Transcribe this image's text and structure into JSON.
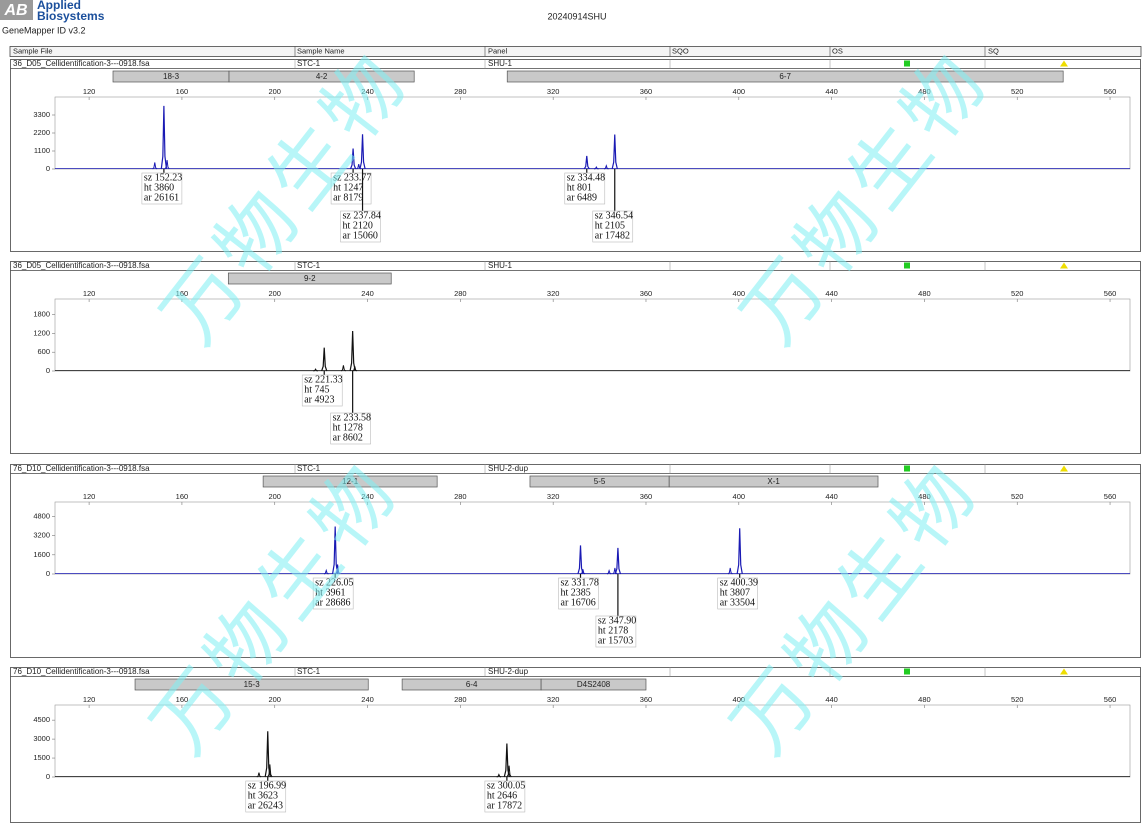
{
  "header": {
    "logo": "AB",
    "company_lines": [
      "Applied",
      "Biosystems"
    ],
    "software": "GeneMapper ID v3.2",
    "title": "20240914SHU"
  },
  "columns": [
    "Sample File",
    "Sample Name",
    "Panel",
    "SQO",
    "OS",
    "SQ"
  ],
  "watermark": "万物生物",
  "peak_label_keys": [
    "sz",
    "ht",
    "ar"
  ],
  "chart_data": [
    {
      "type": "electropherogram",
      "sample_file": "36_D05_Cellidentification-3---0918.fsa",
      "sample_name": "STC-1",
      "panel": "SHU-1",
      "color": "#1a1ab4",
      "bins": [
        {
          "name": "18-3",
          "start": 130.3,
          "end": 180.3
        },
        {
          "name": "4-2",
          "start": 180.3,
          "end": 260.1
        },
        {
          "name": "6-7",
          "start": 300.2,
          "end": 539.8
        }
      ],
      "xlim": [
        105.3,
        568.6
      ],
      "xticks": [
        120,
        160,
        200,
        240,
        280,
        320,
        360,
        400,
        440,
        480,
        520,
        560
      ],
      "ylim": [
        0,
        4400
      ],
      "yticks": [
        0,
        1100,
        2200,
        3300
      ],
      "peaks": [
        {
          "size": 152.23,
          "height": 3860,
          "area": 26161
        },
        {
          "size": 233.77,
          "height": 1247,
          "area": 8179
        },
        {
          "size": 237.84,
          "height": 2120,
          "area": 15060
        },
        {
          "size": 334.48,
          "height": 801,
          "area": 6489
        },
        {
          "size": 346.54,
          "height": 2105,
          "area": 17482
        }
      ],
      "minor_peaks": [
        {
          "size": 148.3,
          "height": 400
        },
        {
          "size": 153.6,
          "height": 550
        },
        {
          "size": 236.2,
          "height": 300
        },
        {
          "size": 338.6,
          "height": 120
        },
        {
          "size": 342.9,
          "height": 200
        }
      ]
    },
    {
      "type": "electropherogram",
      "sample_file": "36_D05_Cellidentification-3---0918.fsa",
      "sample_name": "STC-1",
      "panel": "SHU-1",
      "color": "#111111",
      "bins": [
        {
          "name": "9-2",
          "start": 180,
          "end": 250.2
        }
      ],
      "xlim": [
        105.3,
        568.6
      ],
      "xticks": [
        120,
        160,
        200,
        240,
        280,
        320,
        360,
        400,
        440,
        480,
        520,
        560
      ],
      "ylim": [
        0,
        2300
      ],
      "yticks": [
        0,
        600,
        1200,
        1800
      ],
      "peaks": [
        {
          "size": 221.33,
          "height": 745,
          "area": 4923
        },
        {
          "size": 233.58,
          "height": 1278,
          "area": 8602
        }
      ],
      "minor_peaks": [
        {
          "size": 217.6,
          "height": 60
        },
        {
          "size": 229.6,
          "height": 180
        },
        {
          "size": 234.5,
          "height": 150
        }
      ]
    },
    {
      "type": "electropherogram",
      "sample_file": "76_D10_Cellidentification-3---0918.fsa",
      "sample_name": "STC-1",
      "panel": "SHU-2-dup",
      "color": "#1a1ab4",
      "bins": [
        {
          "name": "12-1",
          "start": 195,
          "end": 270
        },
        {
          "name": "5-5",
          "start": 310,
          "end": 370
        },
        {
          "name": "X-1",
          "start": 370,
          "end": 460
        }
      ],
      "xlim": [
        105.3,
        568.6
      ],
      "xticks": [
        120,
        160,
        200,
        240,
        280,
        320,
        360,
        400,
        440,
        480,
        520,
        560
      ],
      "ylim": [
        0,
        6000
      ],
      "yticks": [
        0,
        1600,
        3200,
        4800
      ],
      "peaks": [
        {
          "size": 226.05,
          "height": 3961,
          "area": 28686
        },
        {
          "size": 331.78,
          "height": 2385,
          "area": 16706
        },
        {
          "size": {
            "value": 347.9,
            "label": "347.90"
          },
          "height": 2178,
          "area": 15703
        },
        {
          "size": 400.39,
          "height": 3807,
          "area": 33504
        }
      ],
      "minor_peaks": [
        {
          "size": 222.2,
          "height": 300
        },
        {
          "size": 227.1,
          "height": 800
        },
        {
          "size": 332.8,
          "height": 400
        },
        {
          "size": 344.1,
          "height": 280
        },
        {
          "size": 346.6,
          "height": 500
        },
        {
          "size": 396.3,
          "height": 500
        }
      ]
    },
    {
      "type": "electropherogram",
      "sample_file": "76_D10_Cellidentification-3---0918.fsa",
      "sample_name": "STC-1",
      "panel": "SHU-2-dup",
      "color": "#111111",
      "bins": [
        {
          "name": "15-3",
          "start": 139.8,
          "end": 240.3
        },
        {
          "name": "6-4",
          "start": 254.9,
          "end": 314.8
        },
        {
          "name": "D4S2408",
          "start": 314.8,
          "end": 360
        }
      ],
      "xlim": [
        105.3,
        568.6
      ],
      "xticks": [
        120,
        160,
        200,
        240,
        280,
        320,
        360,
        400,
        440,
        480,
        520,
        560
      ],
      "ylim": [
        0,
        5700
      ],
      "yticks": [
        0,
        1500,
        3000,
        4500
      ],
      "peaks": [
        {
          "size": 196.99,
          "height": 3623,
          "area": 26243
        },
        {
          "size": 300.05,
          "height": 2646,
          "area": 17872
        }
      ],
      "minor_peaks": [
        {
          "size": 193.2,
          "height": 350
        },
        {
          "size": 197.9,
          "height": 1000
        },
        {
          "size": 296.6,
          "height": 200
        },
        {
          "size": 301,
          "height": 900
        }
      ]
    }
  ]
}
